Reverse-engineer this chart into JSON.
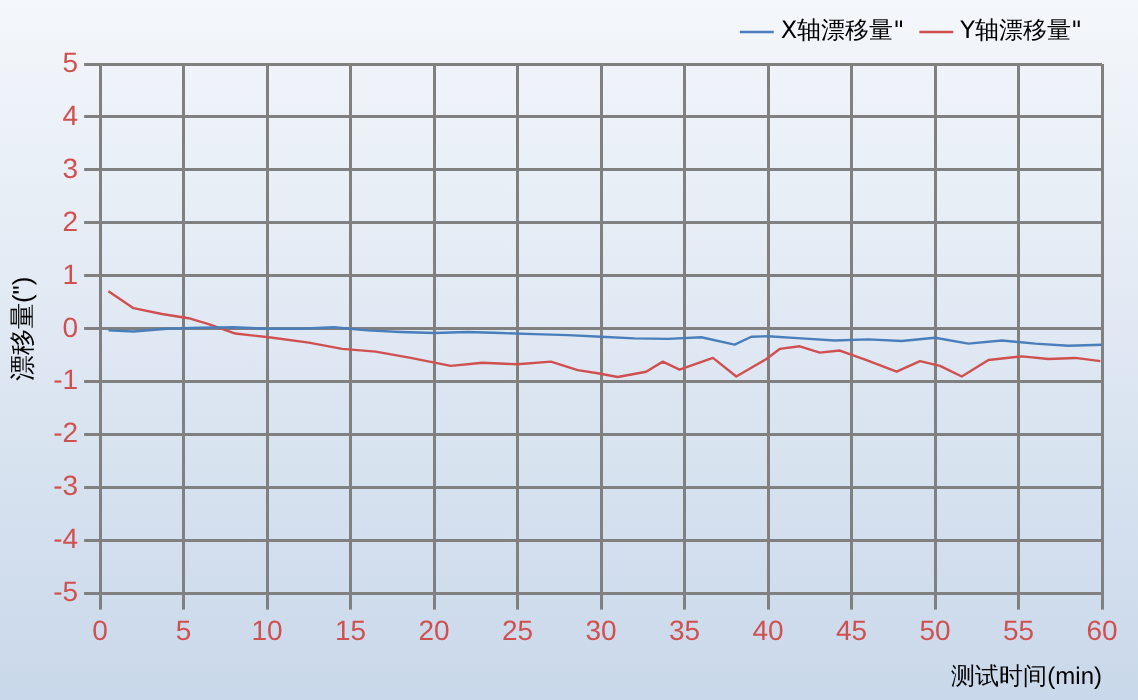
{
  "chart_data": {
    "type": "line",
    "xlabel": "测试时间(min)",
    "ylabel": "漂移量(\")",
    "xlim": [
      0,
      60
    ],
    "xticks": [
      0,
      5,
      10,
      15,
      20,
      25,
      30,
      35,
      40,
      45,
      50,
      55,
      60
    ],
    "ylim": [
      -5,
      5
    ],
    "yticks": [
      -5,
      -4,
      -3,
      -2,
      -1,
      0,
      1,
      2,
      3,
      4,
      5
    ],
    "grid": true,
    "legend": "top right",
    "marker": "none",
    "line_style": "solid",
    "series": [
      {
        "name": "X轴漂移量\"",
        "color": "#4a7ebb",
        "x": [
          0.5,
          2,
          4,
          6,
          8,
          10,
          12,
          14,
          16,
          18,
          20,
          22,
          24,
          26,
          28,
          30,
          32,
          34,
          36,
          38,
          39,
          40,
          42,
          44,
          46,
          48,
          50,
          52,
          54,
          56,
          58,
          60
        ],
        "values": [
          -0.03,
          -0.05,
          0.0,
          0.02,
          0.03,
          0.0,
          0.0,
          0.03,
          -0.03,
          -0.06,
          -0.08,
          -0.06,
          -0.08,
          -0.1,
          -0.12,
          -0.15,
          -0.18,
          -0.19,
          -0.16,
          -0.3,
          -0.15,
          -0.14,
          -0.18,
          -0.22,
          -0.2,
          -0.23,
          -0.17,
          -0.28,
          -0.22,
          -0.28,
          -0.32,
          -0.3
        ]
      },
      {
        "name": "Y轴漂移量\"",
        "color": "#d05050",
        "x": [
          0.5,
          2,
          3.7,
          5.3,
          6.5,
          8.1,
          10.1,
          12.5,
          14.5,
          16.5,
          18.6,
          21,
          22.9,
          25,
          27,
          28.6,
          29.8,
          31,
          32.7,
          33.7,
          34.7,
          36.7,
          38.1,
          39.9,
          40.7,
          41.9,
          43.1,
          44.3,
          45.9,
          47.7,
          49.1,
          50.3,
          51.6,
          53.2,
          55.2,
          56.8,
          58.4,
          59.9
        ],
        "values": [
          0.71,
          0.39,
          0.28,
          0.2,
          0.09,
          -0.09,
          -0.16,
          -0.26,
          -0.38,
          -0.43,
          -0.55,
          -0.7,
          -0.64,
          -0.67,
          -0.62,
          -0.78,
          -0.84,
          -0.91,
          -0.81,
          -0.62,
          -0.77,
          -0.55,
          -0.9,
          -0.57,
          -0.38,
          -0.33,
          -0.45,
          -0.41,
          -0.59,
          -0.81,
          -0.61,
          -0.7,
          -0.9,
          -0.59,
          -0.52,
          -0.57,
          -0.55,
          -0.61
        ]
      }
    ]
  }
}
